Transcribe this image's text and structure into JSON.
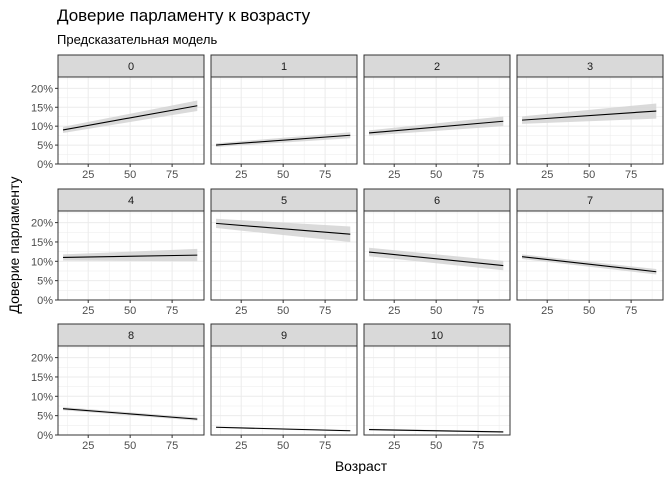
{
  "chart_data": {
    "type": "line",
    "title": "Доверие парламенту к возрасту",
    "subtitle": "Предсказательная модель",
    "xlabel": "Возраст",
    "ylabel": "Доверие парламенту",
    "xlim": [
      7,
      94
    ],
    "ylim": [
      0,
      0.23
    ],
    "x_ticks": [
      25,
      50,
      75
    ],
    "x_tick_labels": [
      "25",
      "50",
      "75"
    ],
    "y_ticks": [
      0,
      0.05,
      0.1,
      0.15,
      0.2
    ],
    "y_tick_labels": [
      "0%",
      "5%",
      "10%",
      "15%",
      "20%"
    ],
    "grid": true,
    "x": [
      10,
      90
    ],
    "panels": [
      {
        "label": "0",
        "values": [
          0.09,
          0.154
        ],
        "lower": [
          0.082,
          0.14
        ],
        "upper": [
          0.098,
          0.168
        ]
      },
      {
        "label": "1",
        "values": [
          0.05,
          0.076
        ],
        "lower": [
          0.045,
          0.068
        ],
        "upper": [
          0.055,
          0.084
        ]
      },
      {
        "label": "2",
        "values": [
          0.082,
          0.113
        ],
        "lower": [
          0.075,
          0.1
        ],
        "upper": [
          0.089,
          0.126
        ]
      },
      {
        "label": "3",
        "values": [
          0.116,
          0.14
        ],
        "lower": [
          0.106,
          0.12
        ],
        "upper": [
          0.126,
          0.16
        ]
      },
      {
        "label": "4",
        "values": [
          0.11,
          0.116
        ],
        "lower": [
          0.102,
          0.1
        ],
        "upper": [
          0.118,
          0.132
        ]
      },
      {
        "label": "5",
        "values": [
          0.198,
          0.17
        ],
        "lower": [
          0.186,
          0.15
        ],
        "upper": [
          0.21,
          0.19
        ]
      },
      {
        "label": "6",
        "values": [
          0.124,
          0.089
        ],
        "lower": [
          0.113,
          0.077
        ],
        "upper": [
          0.135,
          0.101
        ]
      },
      {
        "label": "7",
        "values": [
          0.112,
          0.073
        ],
        "lower": [
          0.106,
          0.066
        ],
        "upper": [
          0.118,
          0.08
        ]
      },
      {
        "label": "8",
        "values": [
          0.068,
          0.041
        ],
        "lower": [
          0.064,
          0.037
        ],
        "upper": [
          0.072,
          0.045
        ]
      },
      {
        "label": "9",
        "values": [
          0.02,
          0.011
        ],
        "lower": [
          0.018,
          0.009
        ],
        "upper": [
          0.022,
          0.013
        ]
      },
      {
        "label": "10",
        "values": [
          0.014,
          0.008
        ],
        "lower": [
          0.012,
          0.006
        ],
        "upper": [
          0.016,
          0.01
        ]
      }
    ],
    "colors": {
      "strip_fill": "#d9d9d9",
      "frame": "#333333",
      "ribbon": "#d3d3d3",
      "line": "#000000",
      "grid": "#ebebeb",
      "tick_text": "#4d4d4d",
      "axis_title": "#000000"
    }
  }
}
